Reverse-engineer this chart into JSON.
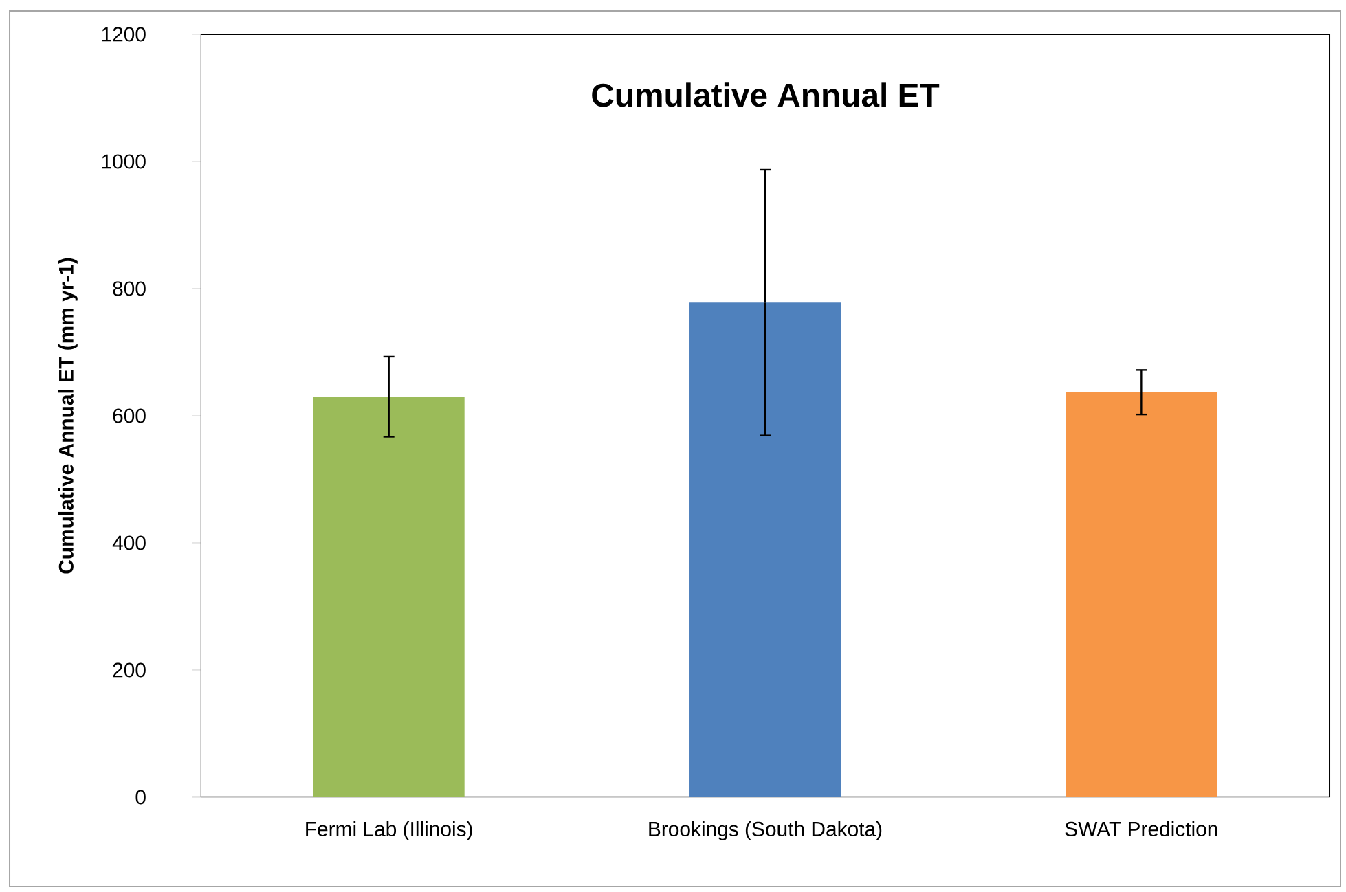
{
  "chart_data": {
    "type": "bar",
    "title": "Cumulative Annual ET",
    "ylabel": "Cumulative Annual ET (mm yr-1)",
    "categories": [
      "Fermi Lab (Illinois)",
      "Brookings (South Dakota)",
      "SWAT Prediction"
    ],
    "values": [
      630,
      778,
      637
    ],
    "colors": [
      "#9bbb59",
      "#4f81bd",
      "#f79646"
    ],
    "errors": [
      63,
      209,
      35
    ],
    "ylim": [
      0,
      1200
    ],
    "yticks": [
      0,
      200,
      400,
      600,
      800,
      1000,
      1200
    ],
    "grid": false
  }
}
